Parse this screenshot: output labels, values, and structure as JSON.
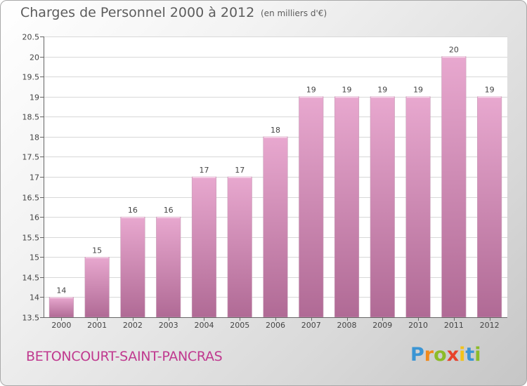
{
  "title": "Charges de Personnel 2000 à 2012",
  "subtitle": "(en milliers d'€)",
  "commune": "BETONCOURT-SAINT-PANCRAS",
  "logo": {
    "letters": [
      "P",
      "r",
      "o",
      "x",
      "i",
      "t",
      "i"
    ],
    "colors": [
      "#3b95d4",
      "#f08a1c",
      "#8cbb28",
      "#e8412c",
      "#f2c21a",
      "#3b95d4",
      "#8cbb28"
    ]
  },
  "colors": {
    "bar_top": "#e8a8cf",
    "bar_bottom": "#b06a95",
    "grid": "#d8d8d8",
    "plot_bg": "#ffffff"
  },
  "chart_data": {
    "type": "bar",
    "categories": [
      "2000",
      "2001",
      "2002",
      "2003",
      "2004",
      "2005",
      "2006",
      "2007",
      "2008",
      "2009",
      "2010",
      "2011",
      "2012"
    ],
    "values": [
      14,
      15,
      16,
      16,
      17,
      17,
      18,
      19,
      19,
      19,
      19,
      20,
      19
    ],
    "labels": [
      "14",
      "15",
      "16",
      "16",
      "17",
      "17",
      "18",
      "19",
      "19",
      "19",
      "19",
      "20",
      "19"
    ],
    "ylim": [
      13.5,
      20.5
    ],
    "yticks": [
      13.5,
      14,
      14.5,
      15,
      15.5,
      16,
      16.5,
      17,
      17.5,
      18,
      18.5,
      19,
      19.5,
      20,
      20.5
    ],
    "ytick_labels": [
      "13.5",
      "14",
      "14.5",
      "15",
      "15.5",
      "16",
      "16.5",
      "17",
      "17.5",
      "18",
      "18.5",
      "19",
      "19.5",
      "20",
      "20.5"
    ],
    "grid": true
  }
}
